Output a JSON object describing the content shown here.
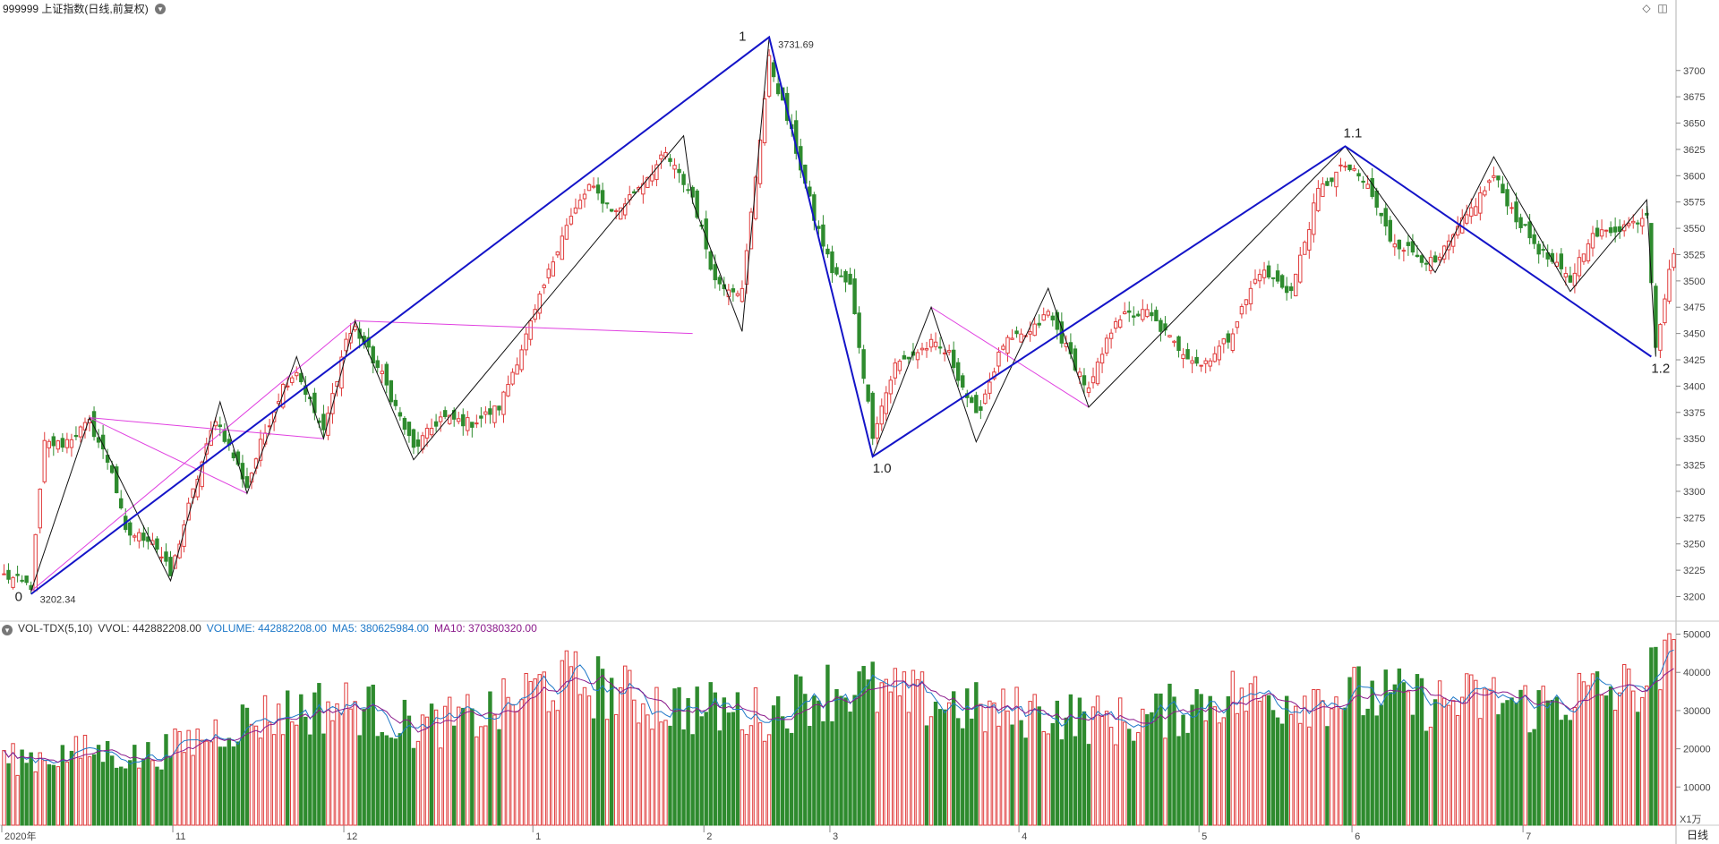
{
  "header": {
    "title": "999999 上证指数(日线,前复权)",
    "diamond_icon": "diamond-icon",
    "panel_icon": "panel-toggle-icon"
  },
  "chart_data": [
    {
      "type": "candlestick",
      "symbol": "999999 上证指数",
      "period": "日线",
      "adjust": "前复权",
      "ylim": [
        3180,
        3750
      ],
      "y_ticks": [
        3200,
        3225,
        3250,
        3275,
        3300,
        3325,
        3350,
        3375,
        3400,
        3425,
        3450,
        3475,
        3500,
        3525,
        3550,
        3575,
        3600,
        3625,
        3650,
        3675,
        3700
      ],
      "x_ticks": [
        "2020年",
        "11",
        "12",
        "1",
        "2",
        "3",
        "4",
        "5",
        "6",
        "7"
      ],
      "x_tick_index": [
        0,
        38,
        76,
        118,
        156,
        184,
        226,
        266,
        300,
        338
      ],
      "n_bars": 372,
      "annotations": {
        "high_value": "3731.69",
        "low_value": "3202.34",
        "wave_labels": [
          "0",
          "1",
          "1.0",
          "1.1",
          "1.2"
        ]
      },
      "waves": [
        {
          "label": "0",
          "i": 6,
          "v": 3202.34
        },
        {
          "label": "1",
          "i": 170,
          "v": 3731.69
        },
        {
          "label": "1.0",
          "i": 193,
          "v": 3333
        },
        {
          "label": "1.1",
          "i": 298,
          "v": 3628
        },
        {
          "label": "1.2",
          "i": 366,
          "v": 3428
        }
      ],
      "zigzag_black": [
        [
          6,
          3205
        ],
        [
          19,
          3370
        ],
        [
          37,
          3215
        ],
        [
          48,
          3385
        ],
        [
          54,
          3298
        ],
        [
          65,
          3428
        ],
        [
          71,
          3350
        ],
        [
          78,
          3462
        ],
        [
          91,
          3330
        ],
        [
          151,
          3638
        ],
        [
          153,
          3575
        ],
        [
          164,
          3452
        ],
        [
          170,
          3731
        ],
        [
          193,
          3333
        ],
        [
          206,
          3475
        ],
        [
          216,
          3347
        ],
        [
          232,
          3493
        ],
        [
          241,
          3380
        ],
        [
          298,
          3628
        ],
        [
          318,
          3508
        ],
        [
          331,
          3618
        ],
        [
          348,
          3490
        ],
        [
          365,
          3577
        ],
        [
          367,
          3428
        ]
      ],
      "zigzag_magenta": [
        [
          6,
          3205
        ],
        [
          78,
          3462
        ],
        [
          153,
          3450
        ]
      ],
      "zigzag_magenta_2": [
        [
          19,
          3370
        ],
        [
          71,
          3350
        ]
      ],
      "zigzag_magenta_3": [
        [
          19,
          3370
        ],
        [
          54,
          3298
        ]
      ],
      "zigzag_magenta_4": [
        [
          206,
          3475
        ],
        [
          241,
          3380
        ]
      ],
      "anchors": [
        {
          "i": 0,
          "c": 3220
        },
        {
          "i": 6,
          "c": 3210
        },
        {
          "i": 9,
          "c": 3345
        },
        {
          "i": 13,
          "c": 3345
        },
        {
          "i": 19,
          "c": 3365
        },
        {
          "i": 24,
          "c": 3320
        },
        {
          "i": 27,
          "c": 3260
        },
        {
          "i": 33,
          "c": 3255
        },
        {
          "i": 37,
          "c": 3220
        },
        {
          "i": 41,
          "c": 3285
        },
        {
          "i": 47,
          "c": 3370
        },
        {
          "i": 54,
          "c": 3305
        },
        {
          "i": 57,
          "c": 3345
        },
        {
          "i": 62,
          "c": 3400
        },
        {
          "i": 65,
          "c": 3415
        },
        {
          "i": 71,
          "c": 3355
        },
        {
          "i": 76,
          "c": 3445
        },
        {
          "i": 78,
          "c": 3455
        },
        {
          "i": 84,
          "c": 3410
        },
        {
          "i": 91,
          "c": 3340
        },
        {
          "i": 97,
          "c": 3370
        },
        {
          "i": 104,
          "c": 3365
        },
        {
          "i": 110,
          "c": 3380
        },
        {
          "i": 118,
          "c": 3470
        },
        {
          "i": 124,
          "c": 3545
        },
        {
          "i": 130,
          "c": 3590
        },
        {
          "i": 136,
          "c": 3565
        },
        {
          "i": 143,
          "c": 3600
        },
        {
          "i": 147,
          "c": 3620
        },
        {
          "i": 153,
          "c": 3580
        },
        {
          "i": 158,
          "c": 3500
        },
        {
          "i": 164,
          "c": 3490
        },
        {
          "i": 167,
          "c": 3600
        },
        {
          "i": 170,
          "c": 3710
        },
        {
          "i": 175,
          "c": 3640
        },
        {
          "i": 180,
          "c": 3560
        },
        {
          "i": 184,
          "c": 3510
        },
        {
          "i": 188,
          "c": 3495
        },
        {
          "i": 193,
          "c": 3355
        },
        {
          "i": 198,
          "c": 3420
        },
        {
          "i": 206,
          "c": 3440
        },
        {
          "i": 210,
          "c": 3430
        },
        {
          "i": 216,
          "c": 3370
        },
        {
          "i": 222,
          "c": 3440
        },
        {
          "i": 228,
          "c": 3450
        },
        {
          "i": 232,
          "c": 3470
        },
        {
          "i": 241,
          "c": 3395
        },
        {
          "i": 247,
          "c": 3465
        },
        {
          "i": 254,
          "c": 3470
        },
        {
          "i": 260,
          "c": 3440
        },
        {
          "i": 266,
          "c": 3420
        },
        {
          "i": 272,
          "c": 3445
        },
        {
          "i": 279,
          "c": 3510
        },
        {
          "i": 286,
          "c": 3490
        },
        {
          "i": 292,
          "c": 3585
        },
        {
          "i": 298,
          "c": 3610
        },
        {
          "i": 303,
          "c": 3590
        },
        {
          "i": 308,
          "c": 3540
        },
        {
          "i": 314,
          "c": 3525
        },
        {
          "i": 318,
          "c": 3515
        },
        {
          "i": 324,
          "c": 3555
        },
        {
          "i": 331,
          "c": 3600
        },
        {
          "i": 336,
          "c": 3560
        },
        {
          "i": 341,
          "c": 3530
        },
        {
          "i": 348,
          "c": 3500
        },
        {
          "i": 352,
          "c": 3540
        },
        {
          "i": 358,
          "c": 3550
        },
        {
          "i": 362,
          "c": 3555
        },
        {
          "i": 365,
          "c": 3565
        },
        {
          "i": 367,
          "c": 3440
        },
        {
          "i": 371,
          "c": 3530
        }
      ]
    },
    {
      "type": "bar",
      "indicator": "VOL-TDX(5,10)",
      "ylim": [
        0,
        52000
      ],
      "y_ticks": [
        10000,
        20000,
        30000,
        40000,
        50000
      ],
      "y_unit": "X1万",
      "series": [
        {
          "name": "VOLUME",
          "color": "#1e78c8"
        },
        {
          "name": "MA5",
          "color": "#1e78c8"
        },
        {
          "name": "MA10",
          "color": "#8b1a8b"
        }
      ],
      "anchors": [
        {
          "i": 0,
          "v": 17000
        },
        {
          "i": 10,
          "v": 18000
        },
        {
          "i": 20,
          "v": 19500
        },
        {
          "i": 30,
          "v": 17500
        },
        {
          "i": 40,
          "v": 21000
        },
        {
          "i": 50,
          "v": 26000
        },
        {
          "i": 60,
          "v": 29000
        },
        {
          "i": 70,
          "v": 31000
        },
        {
          "i": 80,
          "v": 31000
        },
        {
          "i": 90,
          "v": 26000
        },
        {
          "i": 100,
          "v": 27000
        },
        {
          "i": 110,
          "v": 30000
        },
        {
          "i": 120,
          "v": 37000
        },
        {
          "i": 130,
          "v": 37000
        },
        {
          "i": 140,
          "v": 33000
        },
        {
          "i": 150,
          "v": 31000
        },
        {
          "i": 160,
          "v": 30000
        },
        {
          "i": 170,
          "v": 29000
        },
        {
          "i": 180,
          "v": 35000
        },
        {
          "i": 190,
          "v": 36000
        },
        {
          "i": 200,
          "v": 33000
        },
        {
          "i": 210,
          "v": 32000
        },
        {
          "i": 220,
          "v": 29000
        },
        {
          "i": 230,
          "v": 30000
        },
        {
          "i": 240,
          "v": 28000
        },
        {
          "i": 250,
          "v": 27000
        },
        {
          "i": 260,
          "v": 30000
        },
        {
          "i": 270,
          "v": 34000
        },
        {
          "i": 280,
          "v": 33000
        },
        {
          "i": 290,
          "v": 34000
        },
        {
          "i": 300,
          "v": 34000
        },
        {
          "i": 310,
          "v": 33000
        },
        {
          "i": 320,
          "v": 32000
        },
        {
          "i": 330,
          "v": 33000
        },
        {
          "i": 340,
          "v": 31000
        },
        {
          "i": 350,
          "v": 34000
        },
        {
          "i": 360,
          "v": 35000
        },
        {
          "i": 371,
          "v": 42000
        }
      ]
    }
  ],
  "volume_header": {
    "indicator": "VOL-TDX(5,10)",
    "vvol": "VVOL: 442882208.00",
    "volume": "VOLUME: 442882208.00",
    "ma5": "MA5: 380625984.00",
    "ma10": "MA10: 370380320.00",
    "colors": {
      "vvol": "#333333",
      "volume": "#1e78c8",
      "ma5": "#1e78c8",
      "ma10": "#8b1a8b"
    }
  },
  "footer": {
    "period_label": "日线"
  },
  "colors": {
    "up": "#e03c3c",
    "down": "#2e8b2e",
    "wave": "#1414c8",
    "zigzag": "#111111",
    "magenta": "#e040e0"
  }
}
